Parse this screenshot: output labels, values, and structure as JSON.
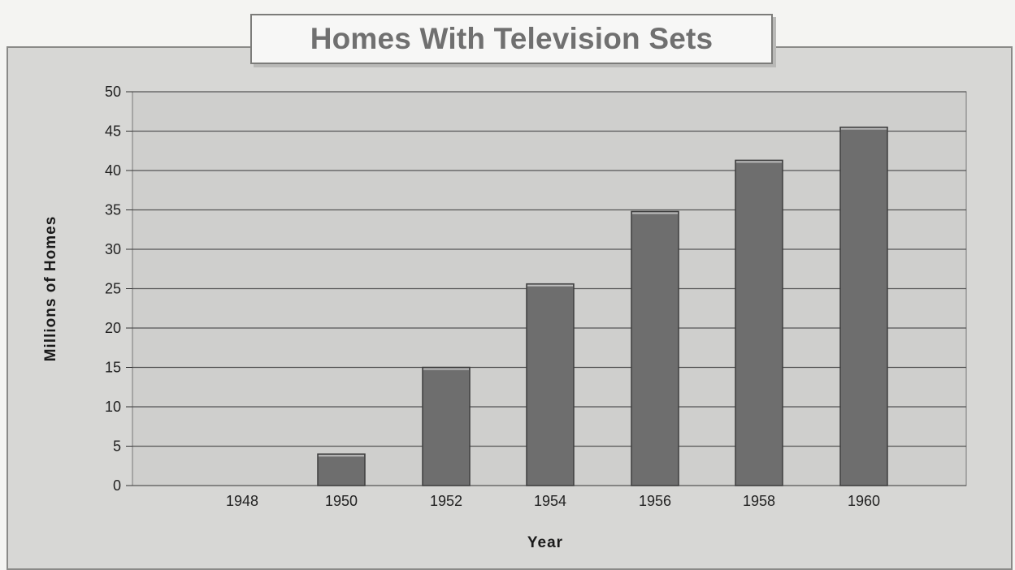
{
  "chart_data": {
    "type": "bar",
    "title": "Homes With Television Sets",
    "xlabel": "Year",
    "ylabel": "Millions of Homes",
    "categories": [
      "1948",
      "1950",
      "1952",
      "1954",
      "1956",
      "1958",
      "1960"
    ],
    "values": [
      0,
      4,
      15,
      25.6,
      34.8,
      41.3,
      45.5
    ],
    "ylim": [
      0,
      50
    ],
    "yticks": [
      "0",
      "5",
      "10",
      "15",
      "20",
      "25",
      "30",
      "35",
      "40",
      "45",
      "50"
    ],
    "grid": true,
    "legend": "none",
    "colors": {
      "bar": "#6e6e6e",
      "plot_bg": "#cfcfcd",
      "grid": "#555555"
    }
  }
}
